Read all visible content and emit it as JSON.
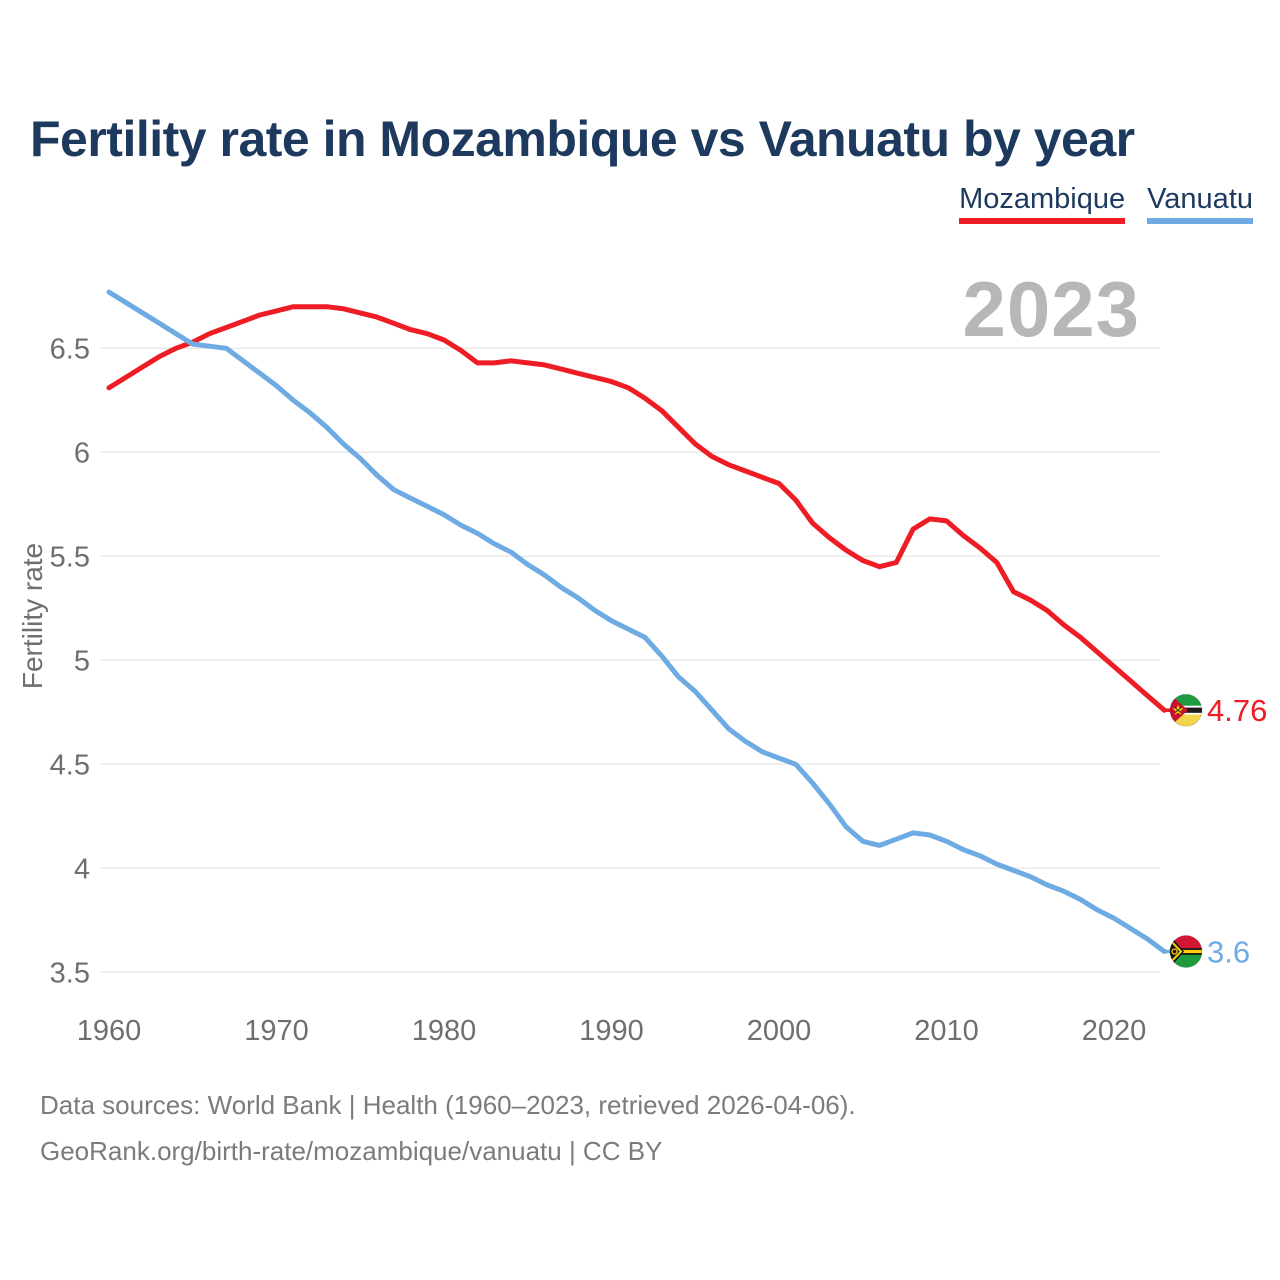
{
  "title": "Fertility rate in Mozambique vs Vanuatu by year",
  "watermark": "2023",
  "legend": [
    {
      "label": "Mozambique",
      "color": "#ee1c24"
    },
    {
      "label": "Vanuatu",
      "color": "#6fabe3"
    }
  ],
  "footer": {
    "line1": "Data sources: World Bank | Health (1960–2023, retrieved 2026-04-06).",
    "line2": "GeoRank.org/birth-rate/mozambique/vanuatu | CC BY"
  },
  "chart_data": {
    "type": "line",
    "title": "Fertility rate in Mozambique vs Vanuatu by year",
    "xlabel": "",
    "ylabel": "Fertility rate",
    "grid": "horizontal",
    "legend_position": "top-right",
    "ylim": [
      3.4,
      6.85
    ],
    "x_range": [
      1960,
      2023
    ],
    "yticks": [
      6.5,
      6,
      5.5,
      5,
      4.5,
      4,
      3.5
    ],
    "xticks": [
      1960,
      1970,
      1980,
      1990,
      2000,
      2010,
      2020
    ],
    "years": [
      1960,
      1961,
      1962,
      1963,
      1964,
      1965,
      1966,
      1967,
      1968,
      1969,
      1970,
      1971,
      1972,
      1973,
      1974,
      1975,
      1976,
      1977,
      1978,
      1979,
      1980,
      1981,
      1982,
      1983,
      1984,
      1985,
      1986,
      1987,
      1988,
      1989,
      1990,
      1991,
      1992,
      1993,
      1994,
      1995,
      1996,
      1997,
      1998,
      1999,
      2000,
      2001,
      2002,
      2003,
      2004,
      2005,
      2006,
      2007,
      2008,
      2009,
      2010,
      2011,
      2012,
      2013,
      2014,
      2015,
      2016,
      2017,
      2018,
      2019,
      2020,
      2021,
      2022,
      2023
    ],
    "series": [
      {
        "name": "Mozambique",
        "color": "#ee1c24",
        "flag": "mozambique",
        "end_label": "4.76",
        "final_value": 4.76,
        "values": [
          6.31,
          6.36,
          6.41,
          6.46,
          6.5,
          6.53,
          6.57,
          6.6,
          6.63,
          6.66,
          6.68,
          6.7,
          6.7,
          6.7,
          6.69,
          6.67,
          6.65,
          6.62,
          6.59,
          6.57,
          6.54,
          6.49,
          6.43,
          6.43,
          6.44,
          6.43,
          6.42,
          6.4,
          6.38,
          6.36,
          6.34,
          6.31,
          6.26,
          6.2,
          6.12,
          6.04,
          5.98,
          5.94,
          5.91,
          5.88,
          5.85,
          5.77,
          5.66,
          5.59,
          5.53,
          5.48,
          5.45,
          5.47,
          5.63,
          5.68,
          5.67,
          5.6,
          5.54,
          5.47,
          5.33,
          5.29,
          5.24,
          5.17,
          5.11,
          5.04,
          4.97,
          4.9,
          4.83,
          4.76
        ]
      },
      {
        "name": "Vanuatu",
        "color": "#6fabe3",
        "flag": "vanuatu",
        "end_label": "3.6",
        "final_value": 3.6,
        "values": [
          6.77,
          6.72,
          6.67,
          6.62,
          6.57,
          6.52,
          6.51,
          6.5,
          6.44,
          6.38,
          6.32,
          6.25,
          6.19,
          6.12,
          6.04,
          5.97,
          5.89,
          5.82,
          5.78,
          5.74,
          5.7,
          5.65,
          5.61,
          5.56,
          5.52,
          5.46,
          5.41,
          5.35,
          5.3,
          5.24,
          5.19,
          5.15,
          5.11,
          5.02,
          4.92,
          4.85,
          4.76,
          4.67,
          4.61,
          4.56,
          4.53,
          4.5,
          4.41,
          4.31,
          4.2,
          4.13,
          4.11,
          4.14,
          4.17,
          4.16,
          4.13,
          4.09,
          4.06,
          4.02,
          3.99,
          3.96,
          3.92,
          3.89,
          3.85,
          3.8,
          3.76,
          3.71,
          3.66,
          3.6
        ]
      }
    ]
  }
}
